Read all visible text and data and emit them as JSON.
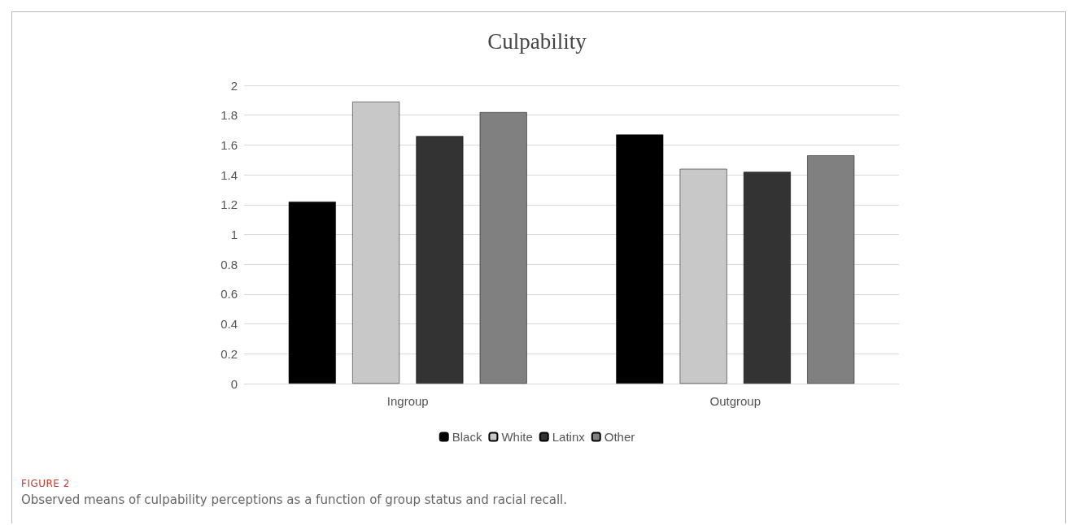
{
  "chart_data": {
    "type": "bar",
    "title": "Culpability",
    "categories": [
      "Ingroup",
      "Outgroup"
    ],
    "series": [
      {
        "name": "Black",
        "color": "#000000",
        "values": [
          1.22,
          1.67
        ]
      },
      {
        "name": "White",
        "color": "#c8c8c8",
        "values": [
          1.89,
          1.44
        ]
      },
      {
        "name": "Latinx",
        "color": "#333333",
        "values": [
          1.66,
          1.42
        ]
      },
      {
        "name": "Other",
        "color": "#808080",
        "values": [
          1.82,
          1.53
        ]
      }
    ],
    "ylim": [
      0,
      2
    ],
    "yticks": [
      0,
      0.2,
      0.4,
      0.6,
      0.8,
      1,
      1.2,
      1.4,
      1.6,
      1.8,
      2
    ],
    "grid": "y",
    "legend": "bottom",
    "annotations": [
      "FIGURE 2",
      "Observed means of culpability perceptions as a function of group status and racial recall."
    ]
  }
}
